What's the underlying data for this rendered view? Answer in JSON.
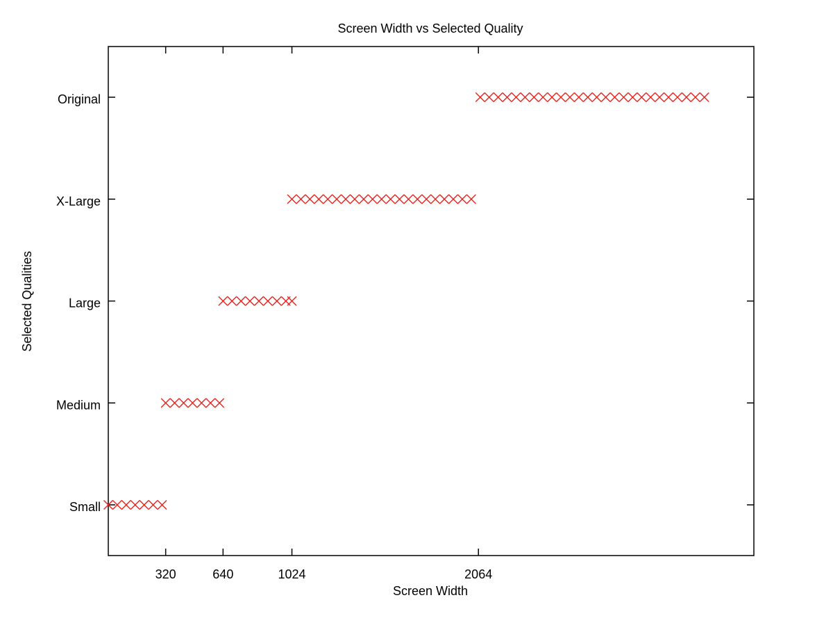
{
  "chart_data": {
    "type": "scatter",
    "title": "Screen Width vs Selected Quality",
    "xlabel": "Screen Width",
    "ylabel": "Selected Qualities",
    "xlim": [
      0,
      3600
    ],
    "x_ticks": [
      320,
      640,
      1024,
      2064
    ],
    "y_categories": [
      "Small",
      "Medium",
      "Large",
      "X-Large",
      "Original"
    ],
    "grid": false,
    "marker": "x",
    "marker_color": "#e8221c",
    "axis_color": "#000000",
    "series": [
      {
        "points": [
          {
            "x": 0,
            "y": "Small"
          },
          {
            "x": 50,
            "y": "Small"
          },
          {
            "x": 100,
            "y": "Small"
          },
          {
            "x": 150,
            "y": "Small"
          },
          {
            "x": 200,
            "y": "Small"
          },
          {
            "x": 250,
            "y": "Small"
          },
          {
            "x": 300,
            "y": "Small"
          },
          {
            "x": 320,
            "y": "Medium"
          },
          {
            "x": 370,
            "y": "Medium"
          },
          {
            "x": 420,
            "y": "Medium"
          },
          {
            "x": 470,
            "y": "Medium"
          },
          {
            "x": 520,
            "y": "Medium"
          },
          {
            "x": 570,
            "y": "Medium"
          },
          {
            "x": 620,
            "y": "Medium"
          },
          {
            "x": 640,
            "y": "Large"
          },
          {
            "x": 690,
            "y": "Large"
          },
          {
            "x": 740,
            "y": "Large"
          },
          {
            "x": 790,
            "y": "Large"
          },
          {
            "x": 840,
            "y": "Large"
          },
          {
            "x": 890,
            "y": "Large"
          },
          {
            "x": 940,
            "y": "Large"
          },
          {
            "x": 990,
            "y": "Large"
          },
          {
            "x": 1024,
            "y": "Large"
          },
          {
            "x": 1024,
            "y": "X-Large"
          },
          {
            "x": 1074,
            "y": "X-Large"
          },
          {
            "x": 1124,
            "y": "X-Large"
          },
          {
            "x": 1174,
            "y": "X-Large"
          },
          {
            "x": 1224,
            "y": "X-Large"
          },
          {
            "x": 1274,
            "y": "X-Large"
          },
          {
            "x": 1324,
            "y": "X-Large"
          },
          {
            "x": 1374,
            "y": "X-Large"
          },
          {
            "x": 1424,
            "y": "X-Large"
          },
          {
            "x": 1474,
            "y": "X-Large"
          },
          {
            "x": 1524,
            "y": "X-Large"
          },
          {
            "x": 1574,
            "y": "X-Large"
          },
          {
            "x": 1624,
            "y": "X-Large"
          },
          {
            "x": 1674,
            "y": "X-Large"
          },
          {
            "x": 1724,
            "y": "X-Large"
          },
          {
            "x": 1774,
            "y": "X-Large"
          },
          {
            "x": 1824,
            "y": "X-Large"
          },
          {
            "x": 1874,
            "y": "X-Large"
          },
          {
            "x": 1924,
            "y": "X-Large"
          },
          {
            "x": 1974,
            "y": "X-Large"
          },
          {
            "x": 2024,
            "y": "X-Large"
          },
          {
            "x": 2074,
            "y": "Original"
          },
          {
            "x": 2124,
            "y": "Original"
          },
          {
            "x": 2174,
            "y": "Original"
          },
          {
            "x": 2224,
            "y": "Original"
          },
          {
            "x": 2274,
            "y": "Original"
          },
          {
            "x": 2324,
            "y": "Original"
          },
          {
            "x": 2374,
            "y": "Original"
          },
          {
            "x": 2424,
            "y": "Original"
          },
          {
            "x": 2474,
            "y": "Original"
          },
          {
            "x": 2524,
            "y": "Original"
          },
          {
            "x": 2574,
            "y": "Original"
          },
          {
            "x": 2624,
            "y": "Original"
          },
          {
            "x": 2674,
            "y": "Original"
          },
          {
            "x": 2724,
            "y": "Original"
          },
          {
            "x": 2774,
            "y": "Original"
          },
          {
            "x": 2824,
            "y": "Original"
          },
          {
            "x": 2874,
            "y": "Original"
          },
          {
            "x": 2924,
            "y": "Original"
          },
          {
            "x": 2974,
            "y": "Original"
          },
          {
            "x": 3024,
            "y": "Original"
          },
          {
            "x": 3074,
            "y": "Original"
          },
          {
            "x": 3124,
            "y": "Original"
          },
          {
            "x": 3174,
            "y": "Original"
          },
          {
            "x": 3224,
            "y": "Original"
          },
          {
            "x": 3274,
            "y": "Original"
          },
          {
            "x": 3324,
            "y": "Original"
          }
        ]
      }
    ]
  }
}
